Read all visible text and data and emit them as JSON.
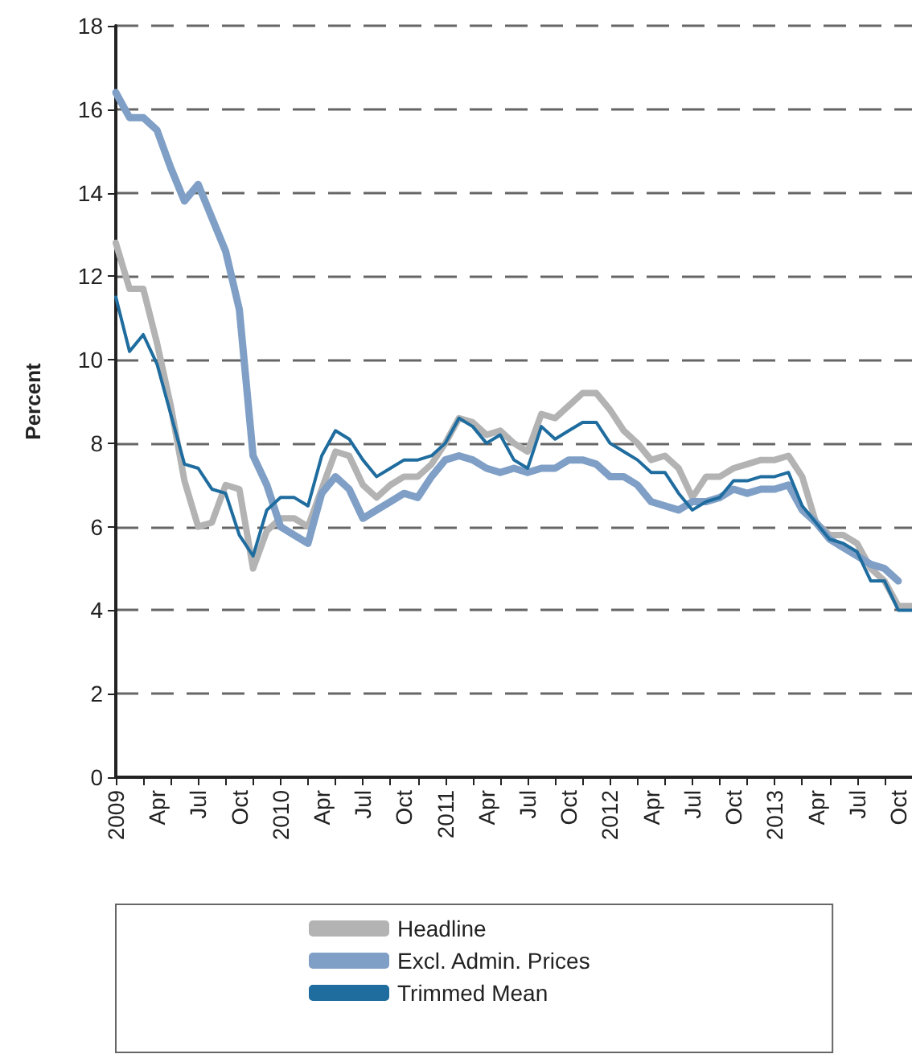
{
  "chart_data": {
    "type": "line",
    "ylabel": "Percent",
    "categories": [
      "2009",
      null,
      null,
      "Apr",
      null,
      null,
      "Jul",
      null,
      null,
      "Oct",
      null,
      null,
      "2010",
      null,
      null,
      "Apr",
      null,
      null,
      "Jul",
      null,
      null,
      "Oct",
      null,
      null,
      "2011",
      null,
      null,
      "Apr",
      null,
      null,
      "Jul",
      null,
      null,
      "Oct",
      null,
      null,
      "2012",
      null,
      null,
      "Apr",
      null,
      null,
      "Jul",
      null,
      null,
      "Oct",
      null,
      null,
      "2013",
      null,
      null,
      "Apr",
      null,
      null,
      "Jul",
      null,
      null,
      "Oct",
      null
    ],
    "series": [
      {
        "name": "Headline",
        "color": "#b3b3b4",
        "values": [
          12.8,
          11.7,
          11.7,
          10.4,
          8.9,
          7.1,
          6.0,
          6.1,
          7.0,
          6.9,
          5.0,
          5.9,
          6.2,
          6.2,
          6.0,
          6.9,
          7.8,
          7.7,
          7.0,
          6.7,
          7.0,
          7.2,
          7.2,
          7.5,
          8.0,
          8.6,
          8.5,
          8.2,
          8.3,
          8.0,
          7.8,
          8.7,
          8.6,
          8.9,
          9.2,
          9.2,
          8.8,
          8.3,
          8.0,
          7.6,
          7.7,
          7.4,
          6.7,
          7.2,
          7.2,
          7.4,
          7.5,
          7.6,
          7.6,
          7.7,
          7.2,
          6.1,
          5.8,
          5.8,
          5.6,
          5.0,
          4.7,
          4.1,
          4.1
        ]
      },
      {
        "name": "Excl. Admin. Prices",
        "color": "#7f9fc6",
        "values": [
          16.4,
          15.8,
          15.8,
          15.5,
          14.6,
          13.8,
          14.2,
          13.4,
          12.6,
          11.2,
          7.7,
          7.0,
          6.0,
          5.8,
          5.6,
          6.8,
          7.2,
          6.9,
          6.2,
          6.4,
          6.6,
          6.8,
          6.7,
          7.2,
          7.6,
          7.7,
          7.6,
          7.4,
          7.3,
          7.4,
          7.3,
          7.4,
          7.4,
          7.6,
          7.6,
          7.5,
          7.2,
          7.2,
          7.0,
          6.6,
          6.5,
          6.4,
          6.6,
          6.6,
          6.7,
          6.9,
          6.8,
          6.9,
          6.9,
          7.0,
          6.4,
          6.1,
          5.7,
          5.5,
          5.3,
          5.1,
          5.0,
          4.7,
          null
        ]
      },
      {
        "name": "Trimmed Mean",
        "color": "#1f6c9f",
        "values": [
          11.5,
          10.2,
          10.6,
          9.9,
          8.7,
          7.5,
          7.4,
          6.9,
          6.8,
          5.8,
          5.3,
          6.4,
          6.7,
          6.7,
          6.5,
          7.7,
          8.3,
          8.1,
          7.6,
          7.2,
          7.4,
          7.6,
          7.6,
          7.7,
          8.0,
          8.6,
          8.4,
          8.0,
          8.2,
          7.6,
          7.4,
          8.4,
          8.1,
          8.3,
          8.5,
          8.5,
          8.0,
          7.8,
          7.6,
          7.3,
          7.3,
          6.8,
          6.4,
          6.6,
          6.7,
          7.1,
          7.1,
          7.2,
          7.2,
          7.3,
          6.5,
          6.1,
          5.7,
          5.6,
          5.4,
          4.7,
          4.7,
          4.0,
          4.0
        ]
      }
    ],
    "ylim": [
      0,
      18
    ],
    "yticks": [
      0,
      2,
      4,
      6,
      8,
      10,
      12,
      14,
      16,
      18
    ],
    "grid": "y",
    "legend": "bottom",
    "line_style": "solid",
    "marker": "none"
  }
}
